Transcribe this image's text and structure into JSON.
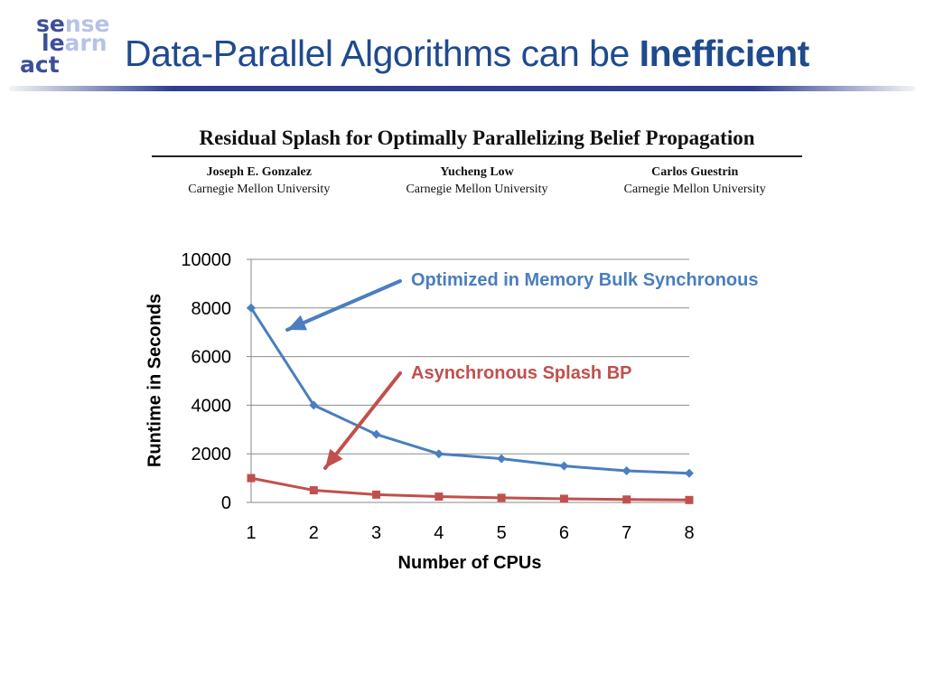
{
  "logo": {
    "line1": [
      "se",
      "nse"
    ],
    "line2": [
      "le",
      "arn"
    ],
    "line3": [
      "act"
    ]
  },
  "slide": {
    "title_prefix": "Data-Parallel Algorithms can be ",
    "title_bold": "Inefficient"
  },
  "paper": {
    "title": "Residual Splash for Optimally Parallelizing Belief Propagation",
    "authors": [
      {
        "name": "Joseph E. Gonzalez",
        "affiliation": "Carnegie Mellon University"
      },
      {
        "name": "Yucheng Low",
        "affiliation": "Carnegie Mellon University"
      },
      {
        "name": "Carlos Guestrin",
        "affiliation": "Carnegie Mellon University"
      }
    ]
  },
  "colors": {
    "title": "#1f4a8e",
    "blue_series": "#4a7ebf",
    "red_series": "#c0504d"
  },
  "chart_data": {
    "type": "line",
    "xlabel": "Number of CPUs",
    "ylabel": "Runtime in Seconds",
    "x": [
      1,
      2,
      3,
      4,
      5,
      6,
      7,
      8
    ],
    "ylim": [
      0,
      10000
    ],
    "yticks": [
      0,
      2000,
      4000,
      6000,
      8000,
      10000
    ],
    "grid": true,
    "series": [
      {
        "name": "Optimized in Memory Bulk Synchronous",
        "values": [
          8000,
          4000,
          2800,
          2000,
          1800,
          1500,
          1300,
          1200
        ],
        "marker": "diamond",
        "color": "#4a7ebf"
      },
      {
        "name": "Asynchronous Splash BP",
        "values": [
          1000,
          500,
          320,
          240,
          190,
          150,
          120,
          100
        ],
        "marker": "square",
        "color": "#c0504d"
      }
    ]
  }
}
